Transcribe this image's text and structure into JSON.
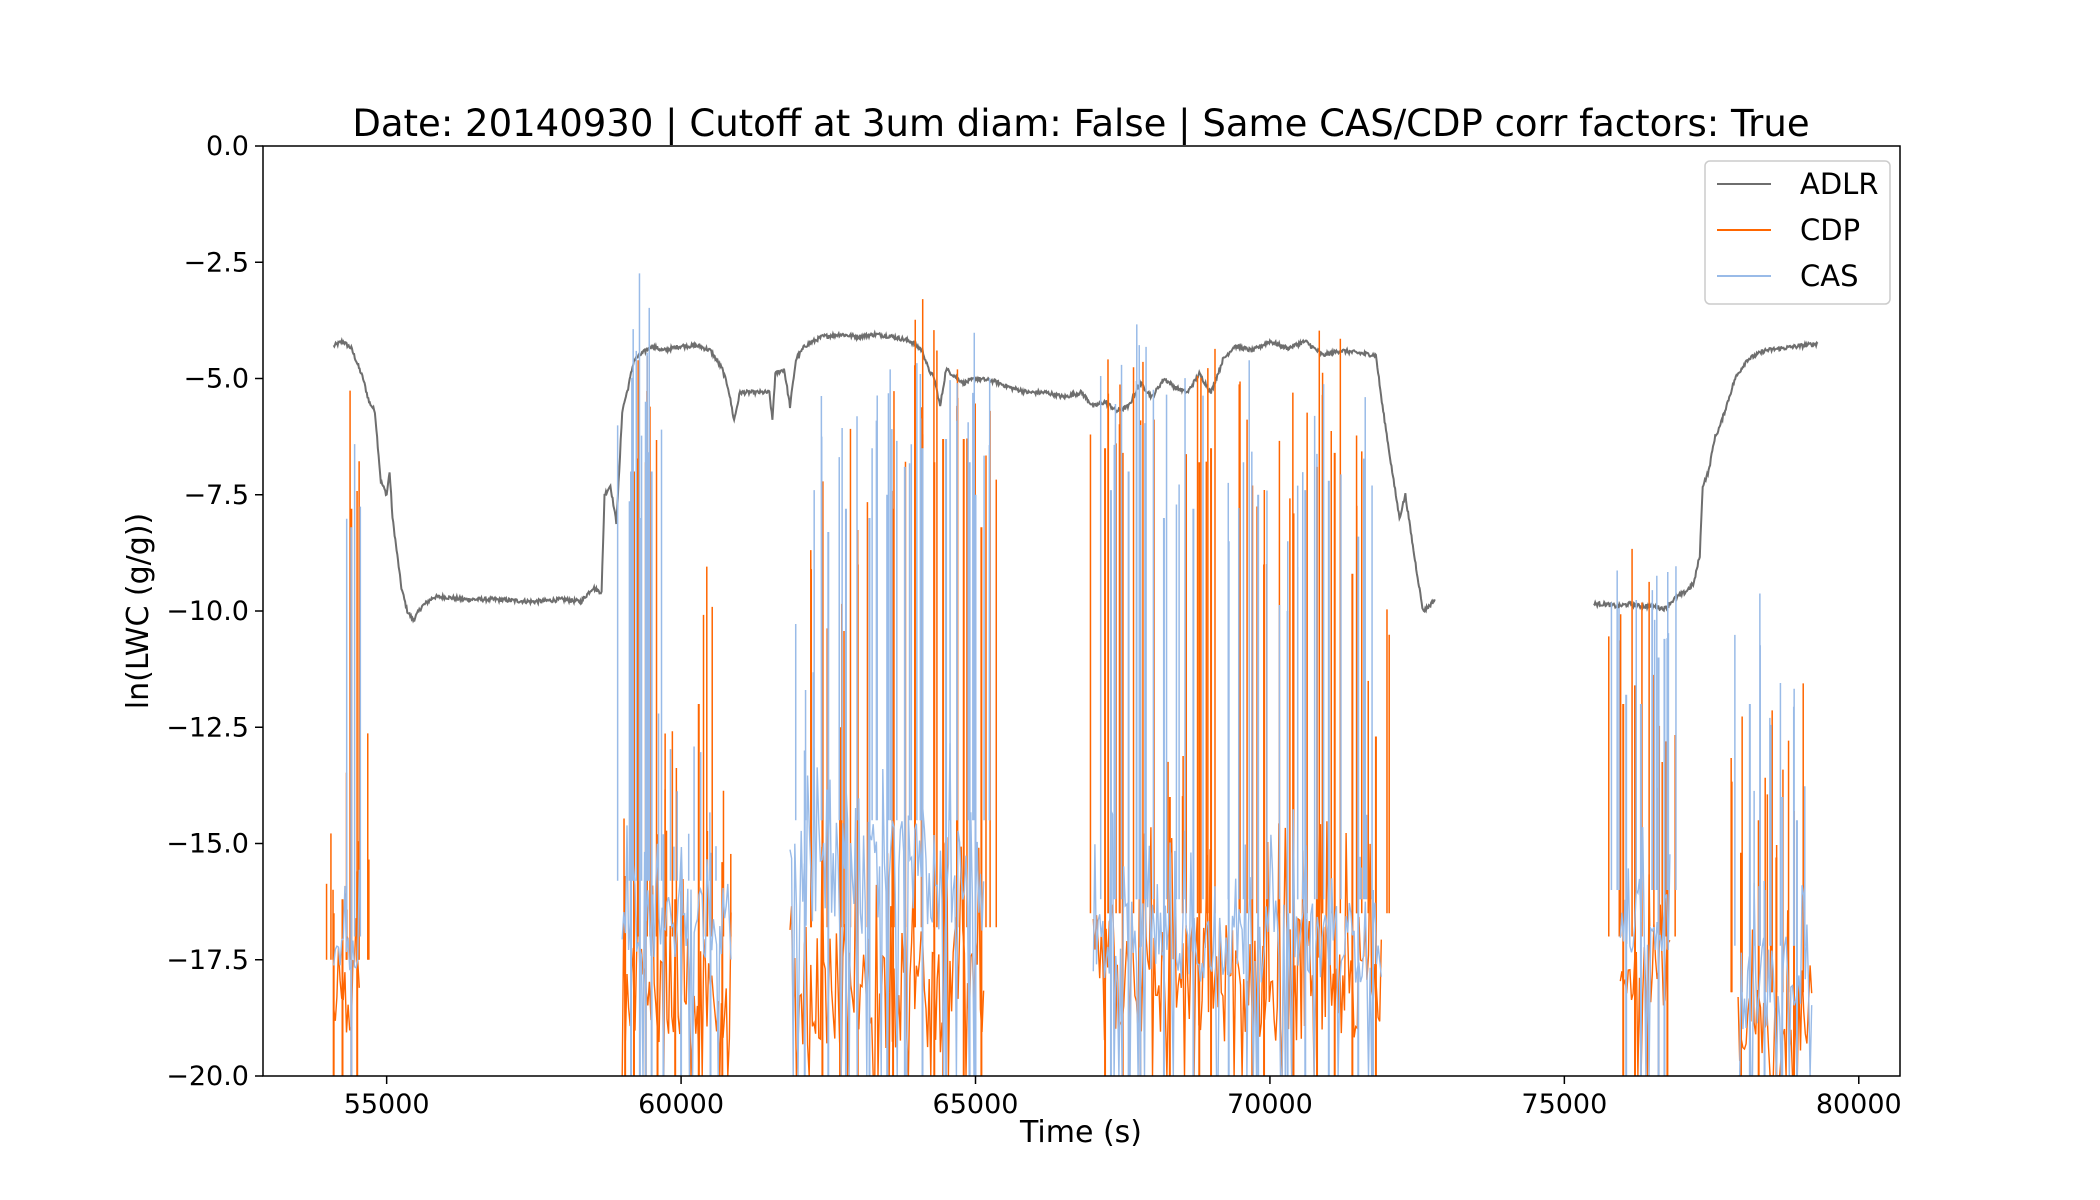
{
  "chart_data": {
    "type": "line",
    "title": "Date: 20140930 | Cutoff at 3um diam: False | Same CAS/CDP corr factors: True",
    "xlabel": "Time (s)",
    "ylabel": "ln(LWC (g/g))",
    "xlim": [
      52900,
      80700
    ],
    "ylim": [
      -20.0,
      0.0
    ],
    "x_ticks": [
      55000,
      60000,
      65000,
      70000,
      75000,
      80000
    ],
    "x_tick_labels": [
      "55000",
      "60000",
      "65000",
      "70000",
      "75000",
      "80000"
    ],
    "y_ticks": [
      0.0,
      -2.5,
      -5.0,
      -7.5,
      -10.0,
      -12.5,
      -15.0,
      -17.5,
      -20.0
    ],
    "y_tick_labels": [
      "0.0",
      "−2.5",
      "−5.0",
      "−7.5",
      "−10.0",
      "−12.5",
      "−15.0",
      "−17.5",
      "−20.0"
    ],
    "grid": false,
    "legend_position": "top-right",
    "series": [
      {
        "name": "ADLR",
        "color": "#6e6e6e",
        "style": "line",
        "segments": [
          [
            [
              54100,
              -4.3
            ],
            [
              54250,
              -4.2
            ],
            [
              54400,
              -4.35
            ],
            [
              54600,
              -5.0
            ],
            [
              54700,
              -5.5
            ],
            [
              54800,
              -5.7
            ],
            [
              54900,
              -7.2
            ],
            [
              55000,
              -7.5
            ],
            [
              55050,
              -7.0
            ],
            [
              55100,
              -8.0
            ],
            [
              55250,
              -9.5
            ],
            [
              55350,
              -10.0
            ],
            [
              55450,
              -10.2
            ],
            [
              55600,
              -9.9
            ],
            [
              55800,
              -9.7
            ],
            [
              56000,
              -9.7
            ],
            [
              56300,
              -9.75
            ],
            [
              56800,
              -9.75
            ],
            [
              57500,
              -9.8
            ],
            [
              58000,
              -9.75
            ],
            [
              58300,
              -9.8
            ],
            [
              58500,
              -9.5
            ],
            [
              58650,
              -9.6
            ],
            [
              58700,
              -7.5
            ],
            [
              58800,
              -7.3
            ],
            [
              58900,
              -8.1
            ],
            [
              58950,
              -7.0
            ],
            [
              59000,
              -5.7
            ],
            [
              59100,
              -5.2
            ],
            [
              59200,
              -4.6
            ],
            [
              59300,
              -4.5
            ],
            [
              59500,
              -4.3
            ],
            [
              59700,
              -4.4
            ],
            [
              60000,
              -4.3
            ],
            [
              60300,
              -4.3
            ],
            [
              60500,
              -4.4
            ],
            [
              60700,
              -4.8
            ],
            [
              60800,
              -5.2
            ],
            [
              60900,
              -5.9
            ],
            [
              61000,
              -5.3
            ],
            [
              61200,
              -5.3
            ],
            [
              61500,
              -5.3
            ],
            [
              61550,
              -5.9
            ],
            [
              61600,
              -4.9
            ],
            [
              61750,
              -4.8
            ],
            [
              61850,
              -5.6
            ],
            [
              61950,
              -4.6
            ],
            [
              62100,
              -4.3
            ],
            [
              62400,
              -4.1
            ],
            [
              62700,
              -4.05
            ],
            [
              63000,
              -4.1
            ],
            [
              63300,
              -4.05
            ],
            [
              63600,
              -4.1
            ],
            [
              63900,
              -4.2
            ],
            [
              64100,
              -4.4
            ],
            [
              64200,
              -4.8
            ],
            [
              64300,
              -5.0
            ],
            [
              64400,
              -5.6
            ],
            [
              64500,
              -4.8
            ],
            [
              64600,
              -4.9
            ],
            [
              64800,
              -5.1
            ],
            [
              65000,
              -5.0
            ],
            [
              65300,
              -5.05
            ],
            [
              65600,
              -5.2
            ],
            [
              65900,
              -5.3
            ],
            [
              66200,
              -5.3
            ],
            [
              66500,
              -5.4
            ],
            [
              66800,
              -5.3
            ],
            [
              67000,
              -5.6
            ],
            [
              67200,
              -5.5
            ],
            [
              67400,
              -5.7
            ],
            [
              67600,
              -5.6
            ],
            [
              67800,
              -5.1
            ],
            [
              68000,
              -5.4
            ],
            [
              68200,
              -5.0
            ],
            [
              68400,
              -5.2
            ],
            [
              68600,
              -5.3
            ],
            [
              68800,
              -4.9
            ],
            [
              69000,
              -5.3
            ],
            [
              69200,
              -4.6
            ],
            [
              69400,
              -4.3
            ],
            [
              69700,
              -4.4
            ],
            [
              70000,
              -4.2
            ],
            [
              70300,
              -4.35
            ],
            [
              70600,
              -4.2
            ],
            [
              70900,
              -4.5
            ],
            [
              71200,
              -4.4
            ],
            [
              71500,
              -4.45
            ],
            [
              71800,
              -4.5
            ],
            [
              71900,
              -5.5
            ],
            [
              72100,
              -7.2
            ],
            [
              72200,
              -8.0
            ],
            [
              72300,
              -7.5
            ],
            [
              72450,
              -8.8
            ],
            [
              72600,
              -10.0
            ],
            [
              72700,
              -9.9
            ],
            [
              72800,
              -9.75
            ]
          ],
          [
            [
              75500,
              -9.85
            ],
            [
              75700,
              -9.85
            ],
            [
              75900,
              -9.9
            ],
            [
              76100,
              -9.85
            ],
            [
              76300,
              -9.9
            ],
            [
              76500,
              -9.9
            ],
            [
              76700,
              -9.95
            ],
            [
              76900,
              -9.7
            ],
            [
              77050,
              -9.6
            ],
            [
              77200,
              -9.4
            ],
            [
              77300,
              -8.8
            ],
            [
              77350,
              -7.3
            ],
            [
              77450,
              -7.0
            ],
            [
              77550,
              -6.3
            ],
            [
              77650,
              -6.0
            ],
            [
              77800,
              -5.4
            ],
            [
              77900,
              -5.0
            ],
            [
              78100,
              -4.6
            ],
            [
              78400,
              -4.4
            ],
            [
              78700,
              -4.35
            ],
            [
              79000,
              -4.3
            ],
            [
              79300,
              -4.25
            ]
          ]
        ]
      },
      {
        "name": "CDP",
        "color": "#ff6600",
        "style": "spiky",
        "segments": [
          {
            "x0": 54100,
            "x1": 54550,
            "floor": -20.0,
            "base_lo": -19.2,
            "base_hi": -17.5,
            "tall": [
              [
                54100,
                -16.5
              ],
              [
                54250,
                -16.2
              ],
              [
                54400,
                -7.8
              ],
              [
                54500,
                -15.6
              ]
            ]
          },
          {
            "x0": 59000,
            "x1": 60850,
            "floor": -20.0,
            "base_lo": -19.3,
            "base_hi": -17.0,
            "tall": [
              [
                59050,
                -15.7
              ],
              [
                59200,
                -7.0
              ],
              [
                59400,
                -6.8
              ],
              [
                59600,
                -14.8
              ],
              [
                59900,
                -16.2
              ],
              [
                60300,
                -12.0
              ],
              [
                60700,
                -15.4
              ]
            ]
          },
          {
            "x0": 61850,
            "x1": 65150,
            "floor": -20.0,
            "base_lo": -19.5,
            "base_hi": -16.8,
            "tall": [
              [
                62400,
                -10.2
              ],
              [
                62700,
                -12.5
              ],
              [
                63000,
                -9.0
              ],
              [
                63600,
                -7.8
              ],
              [
                64100,
                -6.2
              ],
              [
                64300,
                -6.8
              ],
              [
                64450,
                -6.3
              ],
              [
                64800,
                -6.3
              ],
              [
                65100,
                -8.2
              ]
            ]
          },
          {
            "x0": 67000,
            "x1": 71900,
            "floor": -20.0,
            "base_lo": -19.3,
            "base_hi": -16.5,
            "tall": [
              [
                67200,
                -6.5
              ],
              [
                67500,
                -6.6
              ],
              [
                67800,
                -5.9
              ],
              [
                68300,
                -14.0
              ],
              [
                68800,
                -6.8
              ],
              [
                69000,
                -6.5
              ],
              [
                69700,
                -7.3
              ],
              [
                69900,
                -9.0
              ],
              [
                70400,
                -7.9
              ],
              [
                70800,
                -6.9
              ],
              [
                71100,
                -6.6
              ],
              [
                71400,
                -9.2
              ],
              [
                71800,
                -12.7
              ]
            ]
          },
          {
            "x0": 75950,
            "x1": 76800,
            "floor": -20.0,
            "base_lo": -18.5,
            "base_hi": -17.0,
            "tall": [
              [
                76000,
                -12.0
              ],
              [
                76200,
                -11.6
              ],
              [
                76600,
                -13.8
              ],
              [
                76750,
                -15.5
              ]
            ]
          },
          {
            "x0": 77950,
            "x1": 79200,
            "floor": -20.0,
            "base_lo": -19.7,
            "base_hi": -18.2,
            "tall": [
              [
                78000,
                -15.2
              ],
              [
                78300,
                -14.5
              ],
              [
                78600,
                -15.3
              ],
              [
                78900,
                -14.3
              ]
            ]
          }
        ]
      },
      {
        "name": "CAS",
        "color": "#99bbe8",
        "style": "spiky",
        "segments": [
          {
            "x0": 54100,
            "x1": 54550,
            "floor": -20.0,
            "base_lo": -17.8,
            "base_hi": -17.0,
            "tall": [
              [
                54400,
                -8.2
              ]
            ]
          },
          {
            "x0": 59000,
            "x1": 60850,
            "floor": -20.0,
            "base_lo": -17.5,
            "base_hi": -15.8,
            "tall": [
              [
                59150,
                -7.0
              ],
              [
                59300,
                -8.0
              ],
              [
                59400,
                -5.5
              ],
              [
                59500,
                -7.0
              ],
              [
                59700,
                -14.8
              ],
              [
                60000,
                -15.5
              ],
              [
                60500,
                -15.2
              ]
            ]
          },
          {
            "x0": 61850,
            "x1": 65150,
            "floor": -20.0,
            "base_lo": -17.0,
            "base_hi": -14.5,
            "tall": [
              [
                62100,
                -13.0
              ],
              [
                62500,
                -8.3
              ],
              [
                62800,
                -7.8
              ],
              [
                63200,
                -8.0
              ],
              [
                63500,
                -7.5
              ],
              [
                63800,
                -6.9
              ],
              [
                64100,
                -6.5
              ],
              [
                64500,
                -6.3
              ],
              [
                64900,
                -6.8
              ],
              [
                65000,
                -7.5
              ]
            ]
          },
          {
            "x0": 67000,
            "x1": 71900,
            "floor": -20.0,
            "base_lo": -18.0,
            "base_hi": -16.2,
            "tall": [
              [
                67300,
                -7.4
              ],
              [
                67600,
                -7.0
              ],
              [
                67800,
                -6.0
              ],
              [
                68200,
                -8.0
              ],
              [
                68700,
                -7.8
              ],
              [
                69300,
                -8.5
              ],
              [
                69800,
                -7.5
              ],
              [
                70300,
                -10.0
              ],
              [
                70600,
                -7.4
              ],
              [
                71000,
                -7.2
              ],
              [
                71500,
                -8.4
              ],
              [
                71750,
                -16.0
              ]
            ]
          },
          {
            "x0": 75950,
            "x1": 76800,
            "floor": -20.0,
            "base_lo": -17.5,
            "base_hi": -16.0,
            "tall": [
              [
                76050,
                -11.8
              ],
              [
                76300,
                -12.0
              ],
              [
                76600,
                -11.0
              ],
              [
                76700,
                -10.6
              ]
            ]
          },
          {
            "x0": 77950,
            "x1": 79200,
            "floor": -20.0,
            "base_lo": -19.0,
            "base_hi": -17.2,
            "tall": [
              [
                78150,
                -12.0
              ],
              [
                78400,
                -16.0
              ],
              [
                78700,
                -14.0
              ],
              [
                78950,
                -14.5
              ]
            ]
          }
        ]
      }
    ]
  }
}
